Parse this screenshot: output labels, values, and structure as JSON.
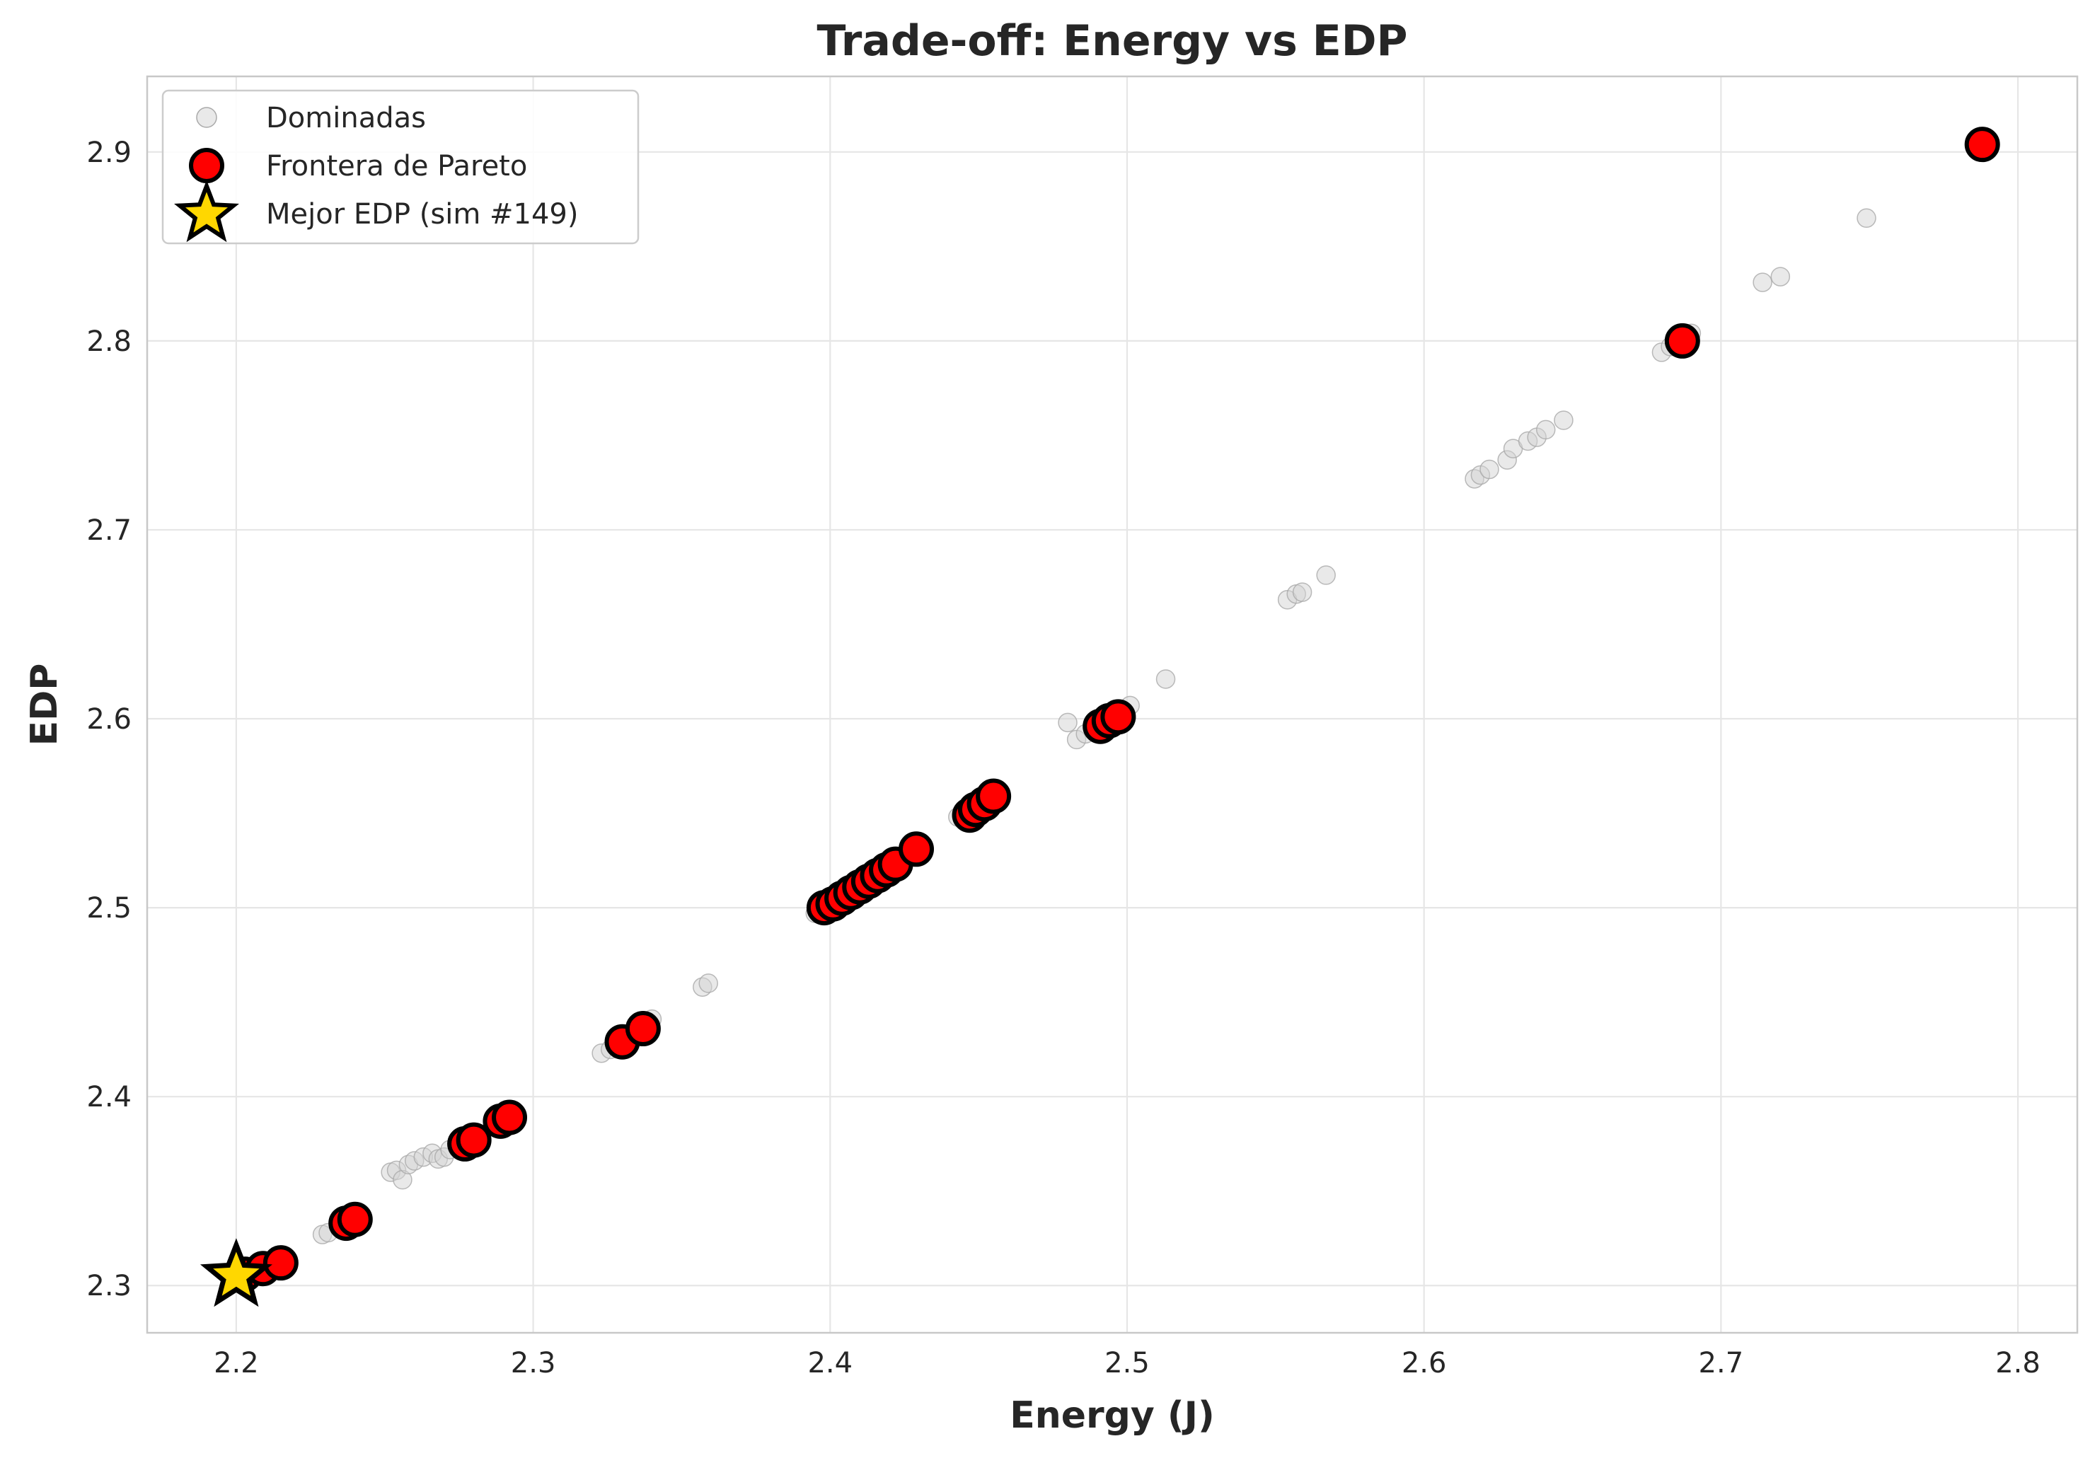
{
  "chart_data": {
    "type": "scatter",
    "title": "Trade-off: Energy vs EDP",
    "xlabel": "Energy (J)",
    "ylabel": "EDP",
    "xlim": [
      2.17,
      2.82
    ],
    "ylim": [
      2.275,
      2.94
    ],
    "xticks": [
      2.2,
      2.3,
      2.4,
      2.5,
      2.6,
      2.7,
      2.8
    ],
    "yticks": [
      2.3,
      2.4,
      2.5,
      2.6,
      2.7,
      2.8,
      2.9
    ],
    "xtick_labels": [
      "2.2",
      "2.3",
      "2.4",
      "2.5",
      "2.6",
      "2.7",
      "2.8"
    ],
    "ytick_labels": [
      "2.3",
      "2.4",
      "2.5",
      "2.6",
      "2.7",
      "2.8",
      "2.9"
    ],
    "grid": true,
    "legend_position": "top-left",
    "series": [
      {
        "name": "Dominadas",
        "color": "#d3d3d3",
        "edge": "#a9a9a9",
        "marker": "circle-small",
        "points": [
          [
            2.229,
            2.327
          ],
          [
            2.231,
            2.328
          ],
          [
            2.252,
            2.36
          ],
          [
            2.254,
            2.361
          ],
          [
            2.256,
            2.356
          ],
          [
            2.258,
            2.364
          ],
          [
            2.26,
            2.366
          ],
          [
            2.263,
            2.368
          ],
          [
            2.266,
            2.37
          ],
          [
            2.268,
            2.367
          ],
          [
            2.27,
            2.368
          ],
          [
            2.272,
            2.372
          ],
          [
            2.276,
            2.377
          ],
          [
            2.278,
            2.375
          ],
          [
            2.282,
            2.379
          ],
          [
            2.288,
            2.386
          ],
          [
            2.292,
            2.39
          ],
          [
            2.323,
            2.423
          ],
          [
            2.326,
            2.425
          ],
          [
            2.335,
            2.435
          ],
          [
            2.34,
            2.441
          ],
          [
            2.357,
            2.458
          ],
          [
            2.359,
            2.46
          ],
          [
            2.395,
            2.497
          ],
          [
            2.398,
            2.499
          ],
          [
            2.403,
            2.504
          ],
          [
            2.408,
            2.51
          ],
          [
            2.413,
            2.515
          ],
          [
            2.42,
            2.522
          ],
          [
            2.428,
            2.53
          ],
          [
            2.443,
            2.548
          ],
          [
            2.447,
            2.551
          ],
          [
            2.45,
            2.554
          ],
          [
            2.455,
            2.559
          ],
          [
            2.48,
            2.598
          ],
          [
            2.483,
            2.589
          ],
          [
            2.486,
            2.592
          ],
          [
            2.489,
            2.596
          ],
          [
            2.492,
            2.6
          ],
          [
            2.495,
            2.603
          ],
          [
            2.498,
            2.605
          ],
          [
            2.501,
            2.607
          ],
          [
            2.513,
            2.621
          ],
          [
            2.554,
            2.663
          ],
          [
            2.557,
            2.666
          ],
          [
            2.559,
            2.667
          ],
          [
            2.567,
            2.676
          ],
          [
            2.617,
            2.727
          ],
          [
            2.619,
            2.729
          ],
          [
            2.622,
            2.732
          ],
          [
            2.628,
            2.737
          ],
          [
            2.63,
            2.743
          ],
          [
            2.635,
            2.747
          ],
          [
            2.638,
            2.749
          ],
          [
            2.641,
            2.753
          ],
          [
            2.647,
            2.758
          ],
          [
            2.68,
            2.794
          ],
          [
            2.683,
            2.797
          ],
          [
            2.686,
            2.801
          ],
          [
            2.69,
            2.804
          ],
          [
            2.714,
            2.831
          ],
          [
            2.72,
            2.834
          ],
          [
            2.749,
            2.865
          ],
          [
            2.79,
            2.906
          ]
        ]
      },
      {
        "name": "Frontera de Pareto",
        "color": "#ff0000",
        "edge": "#000000",
        "marker": "circle-large",
        "points": [
          [
            2.203,
            2.306
          ],
          [
            2.209,
            2.309
          ],
          [
            2.215,
            2.312
          ],
          [
            2.237,
            2.333
          ],
          [
            2.24,
            2.335
          ],
          [
            2.277,
            2.375
          ],
          [
            2.28,
            2.377
          ],
          [
            2.289,
            2.387
          ],
          [
            2.292,
            2.389
          ],
          [
            2.33,
            2.429
          ],
          [
            2.337,
            2.436
          ],
          [
            2.398,
            2.5
          ],
          [
            2.401,
            2.502
          ],
          [
            2.404,
            2.505
          ],
          [
            2.407,
            2.508
          ],
          [
            2.41,
            2.511
          ],
          [
            2.413,
            2.514
          ],
          [
            2.416,
            2.517
          ],
          [
            2.419,
            2.52
          ],
          [
            2.422,
            2.523
          ],
          [
            2.429,
            2.531
          ],
          [
            2.447,
            2.549
          ],
          [
            2.449,
            2.552
          ],
          [
            2.452,
            2.555
          ],
          [
            2.455,
            2.559
          ],
          [
            2.491,
            2.596
          ],
          [
            2.494,
            2.599
          ],
          [
            2.497,
            2.601
          ],
          [
            2.687,
            2.8
          ],
          [
            2.788,
            2.904
          ]
        ]
      },
      {
        "name": "Mejor EDP (sim #149)",
        "color": "#ffd700",
        "edge": "#000000",
        "marker": "star",
        "points": [
          [
            2.2,
            2.305
          ]
        ]
      }
    ]
  }
}
